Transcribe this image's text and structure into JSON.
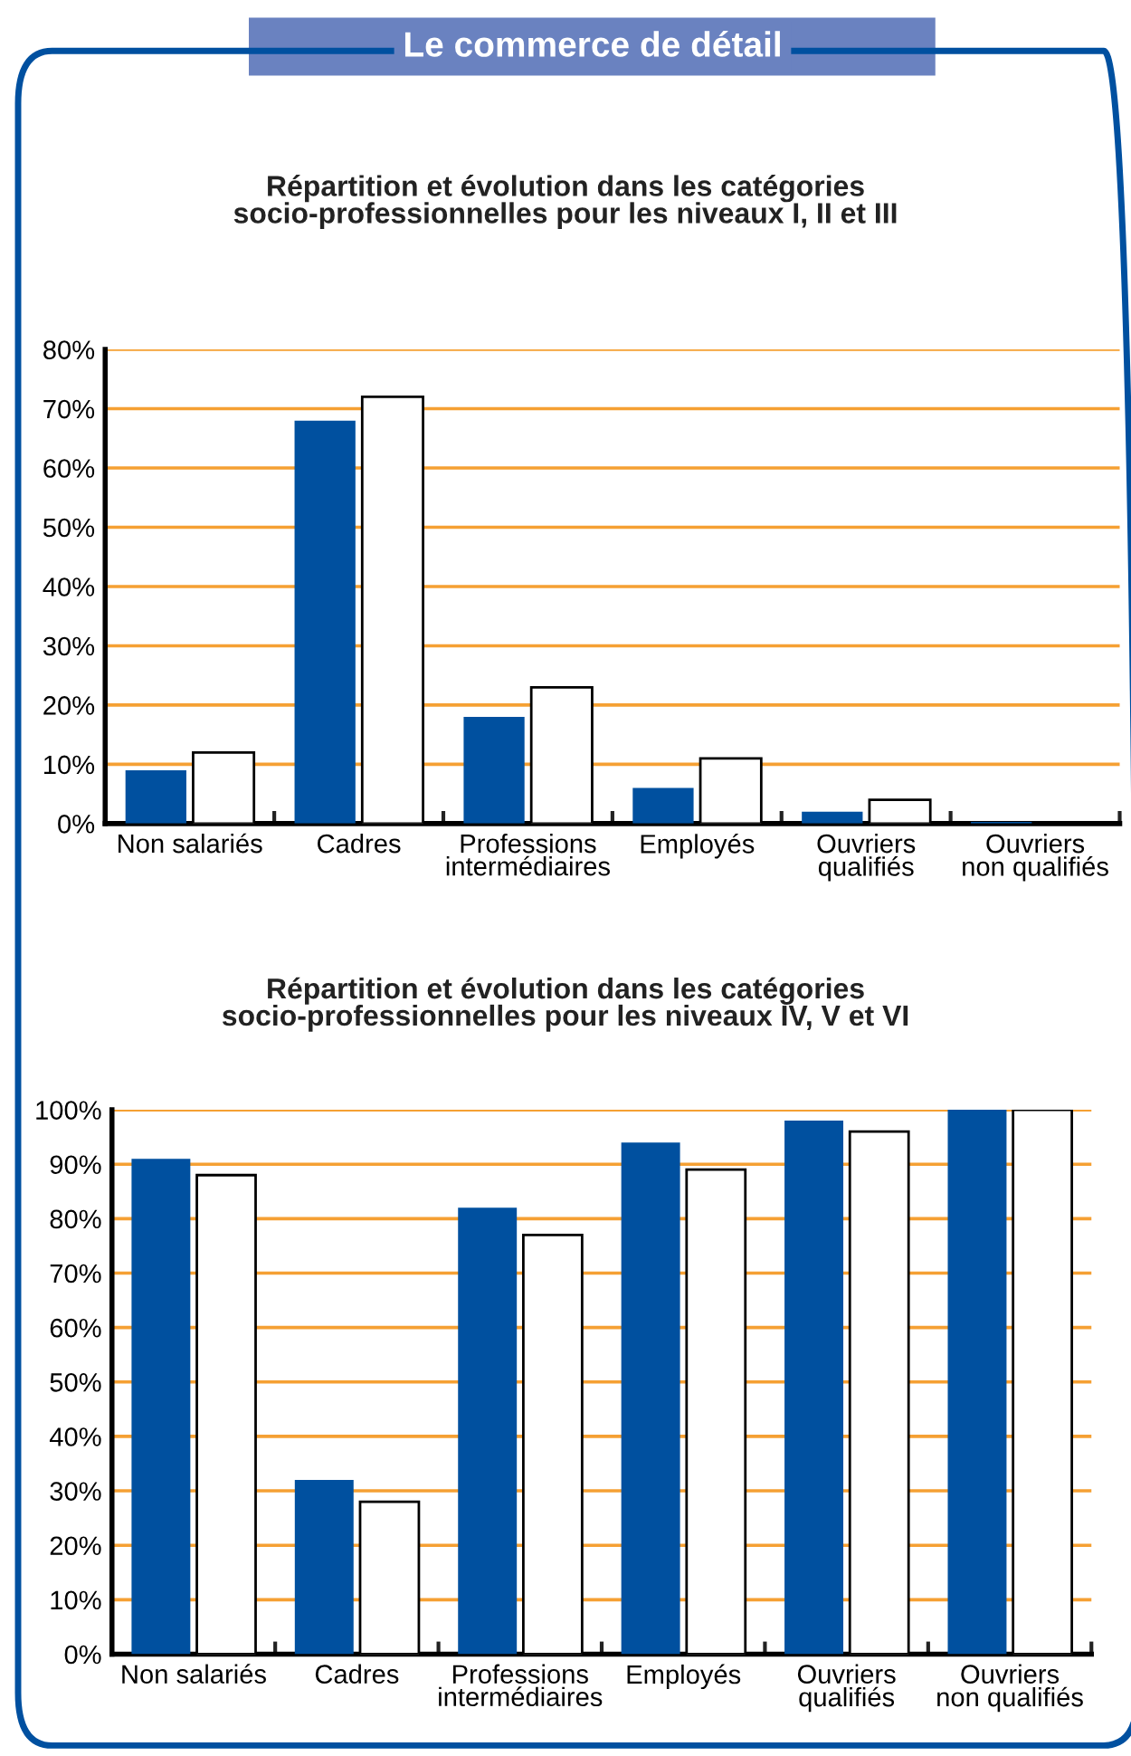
{
  "chart_data": [
    {
      "type": "bar",
      "title": "Répartition et évolution dans les catégories\nsocio-professionnelles pour les niveaux I, II et III",
      "annotations": [
        "Le commerce de détail"
      ],
      "categories": [
        "Non salariés",
        "Cadres",
        "Professions\nintermédiaires",
        "Employés",
        "Ouvriers\nqualifiés",
        "Ouvriers\nnon qualifiés"
      ],
      "series": [
        {
          "color": "#00509f",
          "values": [
            9,
            68,
            18,
            6,
            2,
            0.3
          ]
        },
        {
          "color": "#ffffff",
          "values": [
            12,
            72,
            23,
            11,
            4,
            null
          ]
        }
      ],
      "ylim": [
        0,
        80
      ],
      "yticks": [
        {
          "value": 0,
          "label": "0%"
        },
        {
          "value": 10,
          "label": "10%"
        },
        {
          "value": 20,
          "label": "20%"
        },
        {
          "value": 30,
          "label": "30%"
        },
        {
          "value": 40,
          "label": "40%"
        },
        {
          "value": 50,
          "label": "50%"
        },
        {
          "value": 60,
          "label": "60%"
        },
        {
          "value": 70,
          "label": "70%"
        },
        {
          "value": 80,
          "label": "80%"
        }
      ],
      "grid": "y",
      "legend": false
    },
    {
      "type": "bar",
      "title": "Répartition et évolution dans les catégories\nsocio-professionnelles pour les niveaux IV, V et VI",
      "categories": [
        "Non salariés",
        "Cadres",
        "Professions\nintermédiaires",
        "Employés",
        "Ouvriers\nqualifiés",
        "Ouvriers\nnon qualifiés"
      ],
      "series": [
        {
          "color": "#00509f",
          "values": [
            91,
            32,
            82,
            94,
            98,
            100
          ]
        },
        {
          "color": "#ffffff",
          "values": [
            88,
            28,
            77,
            89,
            96,
            100
          ]
        }
      ],
      "ylim": [
        0,
        100
      ],
      "yticks": [
        {
          "value": 0,
          "label": "0%"
        },
        {
          "value": 10,
          "label": "10%"
        },
        {
          "value": 20,
          "label": "20%"
        },
        {
          "value": 30,
          "label": "30%"
        },
        {
          "value": 40,
          "label": "40%"
        },
        {
          "value": 50,
          "label": "50%"
        },
        {
          "value": 60,
          "label": "60%"
        },
        {
          "value": 70,
          "label": "70%"
        },
        {
          "value": 80,
          "label": "80%"
        },
        {
          "value": 90,
          "label": "90%"
        },
        {
          "value": 100,
          "label": "100%"
        }
      ],
      "grid": "y",
      "legend": false
    }
  ]
}
